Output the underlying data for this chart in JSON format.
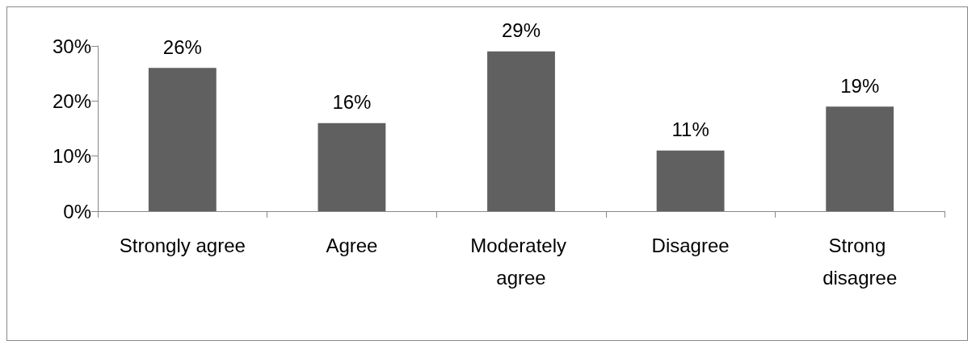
{
  "chart_data": {
    "type": "bar",
    "categories": [
      "Strongly agree",
      "Agree",
      "Moderately agree",
      "Disagree",
      "Strong disagree"
    ],
    "values": [
      26,
      16,
      29,
      11,
      19
    ],
    "value_labels": [
      "26%",
      "16%",
      "29%",
      "11%",
      "19%"
    ],
    "color": "#606060",
    "ylim": [
      0,
      30
    ],
    "yticks": [
      {
        "value": 0,
        "label": "0%"
      },
      {
        "value": 10,
        "label": "10%"
      },
      {
        "value": 20,
        "label": "20%"
      },
      {
        "value": 30,
        "label": "30%"
      }
    ],
    "grid": false
  }
}
